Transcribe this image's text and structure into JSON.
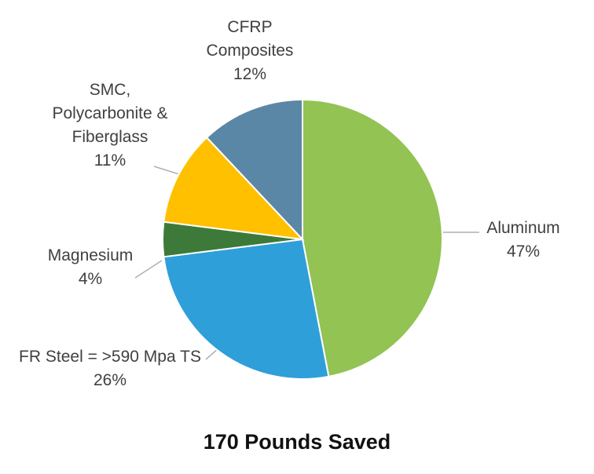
{
  "chart_data": {
    "type": "pie",
    "title": "170 Pounds Saved",
    "categories": [
      "Aluminum",
      "FR Steel = >590 Mpa TS",
      "Magnesium",
      "SMC, Polycarbonite & Fiberglass",
      "CFRP Composites"
    ],
    "values": [
      47,
      26,
      4,
      11,
      12
    ],
    "value_labels": [
      "47%",
      "26%",
      "4%",
      "11%",
      "12%"
    ],
    "colors": [
      "#92c353",
      "#2e9fd9",
      "#3d7a3a",
      "#ffc000",
      "#5b87a6"
    ]
  }
}
